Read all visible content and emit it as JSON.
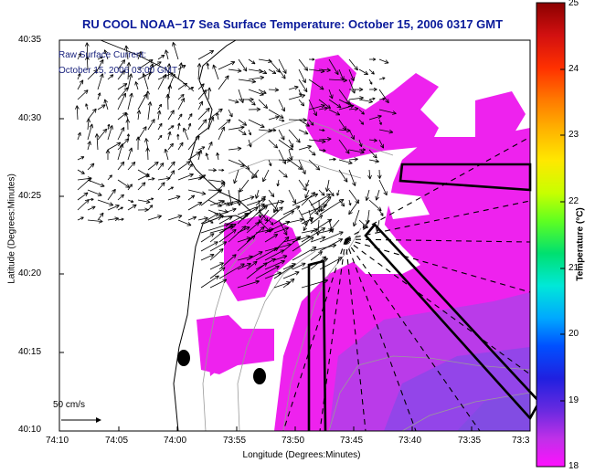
{
  "title": "RU COOL  NOAA−17  Sea Surface Temperature:  October 15, 2006 0317 GMT",
  "legend": {
    "line1": "Raw Surface Current:",
    "line2": "October 15, 2006 03:00 GMT"
  },
  "axes": {
    "xlabel": "Longitude (Degrees:Minutes)",
    "ylabel": "Latitude (Degrees:Minutes)",
    "xticks": [
      "74:10",
      "74:05",
      "74:00",
      "73:55",
      "73:50",
      "73:45",
      "73:40",
      "73:35",
      "73:3"
    ],
    "yticks": [
      "40:35",
      "40:30",
      "40:25",
      "40:20",
      "40:15",
      "40:10"
    ]
  },
  "colorbar": {
    "label": "Temperature (°C)",
    "ticks": [
      "25",
      "24",
      "23",
      "22",
      "21",
      "20",
      "19",
      "18"
    ],
    "range": [
      18,
      25
    ]
  },
  "scale": {
    "label": "50 cm/s"
  },
  "colors": {
    "sst": "#ee22ee",
    "sst_warm": "#a040e0",
    "title": "#0a1a9a"
  }
}
